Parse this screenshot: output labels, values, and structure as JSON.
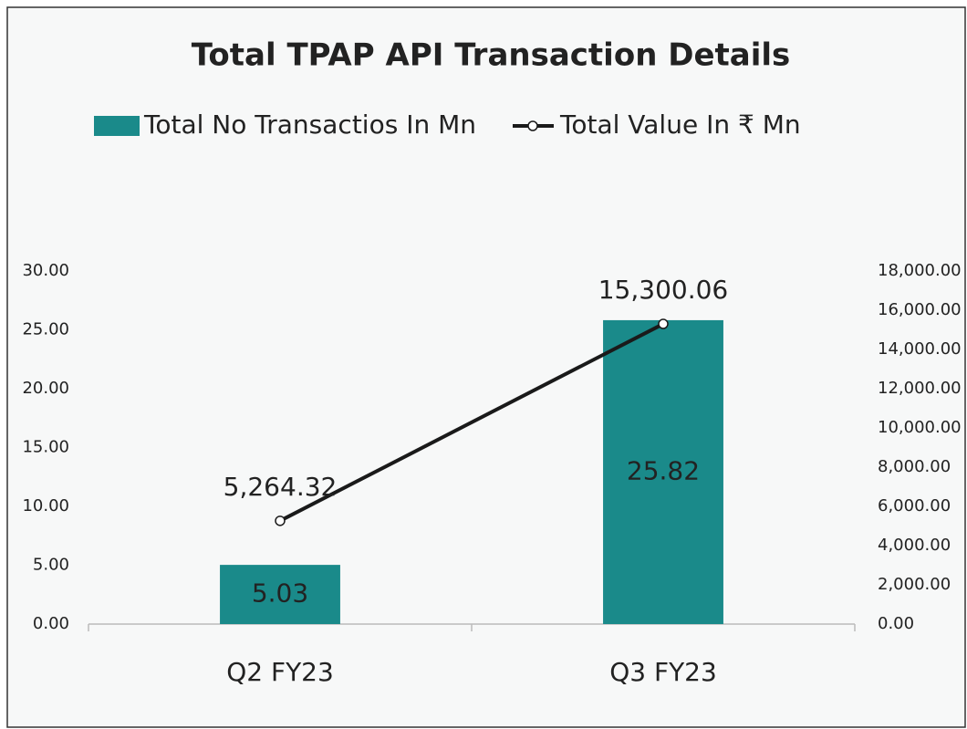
{
  "chart_data": {
    "type": "combo",
    "title": "Total TPAP API Transaction Details",
    "categories": [
      "Q2 FY23",
      "Q3 FY23"
    ],
    "series": [
      {
        "name": "Total No Transactios In Mn",
        "type": "bar",
        "color": "#1a8a8a",
        "values": [
          5.03,
          25.82
        ]
      },
      {
        "name": "Total Value In ₹ Mn",
        "type": "line",
        "axis": "y2",
        "color": "#1a1a1a",
        "values": [
          5264.32,
          15300.06
        ],
        "value_labels": [
          "5,264.32",
          "15,300.06"
        ]
      }
    ],
    "ylim": [
      0,
      30
    ],
    "yticks": [
      {
        "value": 0,
        "label": "0.00"
      },
      {
        "value": 5,
        "label": "5.00"
      },
      {
        "value": 10,
        "label": "10.00"
      },
      {
        "value": 15,
        "label": "15.00"
      },
      {
        "value": 20,
        "label": "20.00"
      },
      {
        "value": 25,
        "label": "25.00"
      },
      {
        "value": 30,
        "label": "30.00"
      }
    ],
    "y2lim": [
      0,
      18000
    ],
    "y2ticks": [
      {
        "value": 0,
        "label": "0.00"
      },
      {
        "value": 2000,
        "label": "2,000.00"
      },
      {
        "value": 4000,
        "label": "4,000.00"
      },
      {
        "value": 6000,
        "label": "6,000.00"
      },
      {
        "value": 8000,
        "label": "8,000.00"
      },
      {
        "value": 10000,
        "label": "10,000.00"
      },
      {
        "value": 12000,
        "label": "12,000.00"
      },
      {
        "value": 14000,
        "label": "14,000.00"
      },
      {
        "value": 16000,
        "label": "16,000.00"
      },
      {
        "value": 18000,
        "label": "18,000.00"
      }
    ],
    "legend": "top",
    "grid": false
  }
}
